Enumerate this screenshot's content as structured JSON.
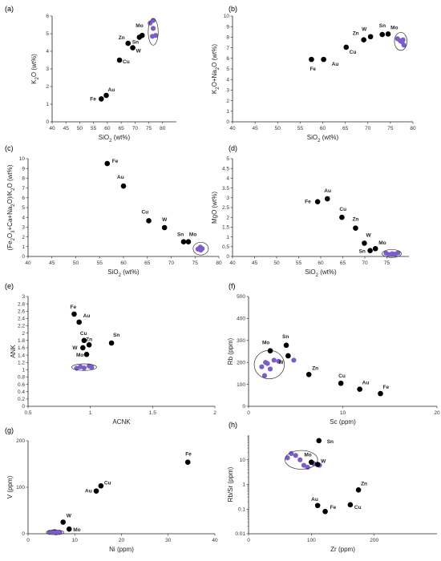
{
  "figure": {
    "colors": {
      "point": "#000000",
      "purple": "#7b5cc9",
      "axis": "#222222",
      "ellipse": "#333333"
    }
  },
  "chart_data": [
    {
      "id": "a",
      "panel_label": "(a)",
      "type": "scatter",
      "xlabel": "SiO2 (wt%)",
      "ylabel": "K2O (wt%)",
      "xlim": [
        40,
        85
      ],
      "ylim": [
        0,
        6
      ],
      "xticks": [
        40,
        45,
        50,
        55,
        60,
        65,
        70,
        75,
        80
      ],
      "yticks": [
        0,
        1,
        2,
        3,
        4,
        5,
        6
      ],
      "points": [
        {
          "label": "Fe",
          "x": 57.8,
          "y": 1.3
        },
        {
          "label": "Au",
          "x": 59.6,
          "y": 1.5
        },
        {
          "label": "Cu",
          "x": 64.4,
          "y": 3.5
        },
        {
          "label": "Zn",
          "x": 67.5,
          "y": 4.45
        },
        {
          "label": "W",
          "x": 69.2,
          "y": 4.2
        },
        {
          "label": "Sn",
          "x": 71.6,
          "y": 4.8
        },
        {
          "label": "Mo",
          "x": 72.6,
          "y": 4.9
        }
      ],
      "cluster": [
        [
          75.5,
          5.6
        ],
        [
          76.6,
          5.3
        ],
        [
          76.3,
          4.85
        ],
        [
          77.5,
          4.9
        ],
        [
          76.6,
          5.75
        ]
      ],
      "ellipse": {
        "cx": 76.6,
        "cy": 5.1,
        "rx": 1.8,
        "ry": 0.75
      }
    },
    {
      "id": "b",
      "panel_label": "(b)",
      "type": "scatter",
      "xlabel": "SiO2 (wt%)",
      "ylabel": "K2O+Na2O (wt%)",
      "xlim": [
        40,
        80
      ],
      "ylim": [
        0,
        10
      ],
      "xticks": [
        40,
        45,
        50,
        55,
        60,
        65,
        70,
        75,
        80
      ],
      "yticks": [
        0,
        1,
        2,
        3,
        4,
        5,
        6,
        7,
        8,
        9,
        10
      ],
      "points": [
        {
          "label": "Fe",
          "x": 57.5,
          "y": 5.9
        },
        {
          "label": "Au",
          "x": 60.2,
          "y": 5.9
        },
        {
          "label": "Cu",
          "x": 65.2,
          "y": 7.05
        },
        {
          "label": "Zn",
          "x": 69.1,
          "y": 7.75
        },
        {
          "label": "W",
          "x": 70.6,
          "y": 8.05
        },
        {
          "label": "Sn",
          "x": 73.2,
          "y": 8.25
        },
        {
          "label": "Mo",
          "x": 74.5,
          "y": 8.3
        }
      ],
      "cluster": [
        [
          76.6,
          7.85
        ],
        [
          77.2,
          7.65
        ],
        [
          77.6,
          7.55
        ],
        [
          77.8,
          7.75
        ],
        [
          78.0,
          7.25
        ]
      ],
      "ellipse": {
        "cx": 77.3,
        "cy": 7.6,
        "rx": 1.4,
        "ry": 0.85
      }
    },
    {
      "id": "c",
      "panel_label": "(c)",
      "type": "scatter",
      "xlabel": "SiO2 (wt%)",
      "ylabel": "(Fe2O3+Ca+Na2O)/K2O (wt%)",
      "xlim": [
        40,
        80
      ],
      "ylim": [
        0,
        10
      ],
      "xticks": [
        40,
        45,
        50,
        55,
        60,
        65,
        70,
        75,
        80
      ],
      "yticks": [
        0,
        1,
        2,
        3,
        4,
        5,
        6,
        7,
        8,
        9,
        10
      ],
      "points": [
        {
          "label": "Fe",
          "x": 56.6,
          "y": 9.5
        },
        {
          "label": "Au",
          "x": 60.0,
          "y": 7.2
        },
        {
          "label": "Cu",
          "x": 65.3,
          "y": 3.65
        },
        {
          "label": "W",
          "x": 68.6,
          "y": 2.95
        },
        {
          "label": "Sn",
          "x": 72.6,
          "y": 1.5
        },
        {
          "label": "Mo",
          "x": 73.6,
          "y": 1.5
        }
      ],
      "cluster": [
        [
          75.6,
          0.75
        ],
        [
          76.1,
          0.95
        ],
        [
          76.5,
          0.8
        ],
        [
          76.2,
          0.65
        ]
      ],
      "ellipse": {
        "cx": 76.2,
        "cy": 0.8,
        "rx": 1.6,
        "ry": 0.65
      }
    },
    {
      "id": "d",
      "panel_label": "(d)",
      "type": "scatter",
      "xlabel": "SiO2 (wt%)",
      "ylabel": "MgO (wt%)",
      "xlim": [
        40,
        80
      ],
      "ylim": [
        0,
        5
      ],
      "xticks": [
        40,
        45,
        50,
        55,
        60,
        65,
        70,
        75
      ],
      "yticks": [
        0,
        0.5,
        1,
        1.5,
        2,
        2.5,
        3,
        3.5,
        4,
        4.5,
        5
      ],
      "points": [
        {
          "label": "Fe",
          "x": 59.3,
          "y": 2.8
        },
        {
          "label": "Au",
          "x": 61.5,
          "y": 2.95
        },
        {
          "label": "Cu",
          "x": 64.8,
          "y": 2.0
        },
        {
          "label": "Zn",
          "x": 67.9,
          "y": 1.45
        },
        {
          "label": "W",
          "x": 69.9,
          "y": 0.68
        },
        {
          "label": "Sn",
          "x": 71.2,
          "y": 0.3
        },
        {
          "label": "Mo",
          "x": 72.4,
          "y": 0.4
        }
      ],
      "cluster": [
        [
          74.8,
          0.17
        ],
        [
          75.5,
          0.1
        ],
        [
          76.2,
          0.14
        ],
        [
          76.9,
          0.12
        ],
        [
          77.5,
          0.18
        ]
      ],
      "ellipse": {
        "cx": 76.1,
        "cy": 0.15,
        "rx": 2.2,
        "ry": 0.2
      }
    },
    {
      "id": "e",
      "panel_label": "(e)",
      "type": "scatter",
      "xlabel": "ACNK",
      "ylabel": "ANK",
      "xlim": [
        0.5,
        2
      ],
      "ylim": [
        0,
        3
      ],
      "xticks": [
        0.5,
        1,
        1.5,
        2
      ],
      "yticks": [
        0,
        0.2,
        0.4,
        0.6,
        0.8,
        1,
        1.2,
        1.4,
        1.6,
        1.8,
        2,
        2.2,
        2.4,
        2.6,
        2.8,
        3
      ],
      "points": [
        {
          "label": "Fe",
          "x": 0.87,
          "y": 2.52
        },
        {
          "label": "Au",
          "x": 0.91,
          "y": 2.3
        },
        {
          "label": "Cu",
          "x": 0.95,
          "y": 1.8
        },
        {
          "label": "Zn",
          "x": 0.99,
          "y": 1.68
        },
        {
          "label": "W",
          "x": 0.94,
          "y": 1.6
        },
        {
          "label": "Mo",
          "x": 0.97,
          "y": 1.42
        },
        {
          "label": "Sn",
          "x": 1.17,
          "y": 1.73
        }
      ],
      "cluster": [
        [
          0.89,
          1.04
        ],
        [
          0.92,
          1.08
        ],
        [
          0.95,
          1.05
        ],
        [
          0.99,
          1.1
        ],
        [
          1.01,
          1.07
        ]
      ],
      "ellipse": {
        "cx": 0.95,
        "cy": 1.07,
        "rx": 0.1,
        "ry": 0.09
      }
    },
    {
      "id": "f",
      "panel_label": "(f)",
      "type": "scatter",
      "xlabel": "Sc (ppm)",
      "ylabel": "Rb (ppm)",
      "xlim": [
        0,
        20
      ],
      "ylim": [
        0,
        500
      ],
      "xticks": [
        0,
        10,
        20
      ],
      "yticks": [
        0,
        100,
        200,
        300,
        400,
        500
      ],
      "points": [
        {
          "label": "Mo",
          "x": 2.3,
          "y": 253
        },
        {
          "label": "Sn",
          "x": 4.0,
          "y": 278
        },
        {
          "label": "W",
          "x": 4.2,
          "y": 230
        },
        {
          "label": "Zn",
          "x": 6.4,
          "y": 145
        },
        {
          "label": "Cu",
          "x": 9.8,
          "y": 105
        },
        {
          "label": "Au",
          "x": 11.8,
          "y": 78
        },
        {
          "label": "Fe",
          "x": 14.0,
          "y": 58
        }
      ],
      "cluster": [
        [
          1.4,
          180
        ],
        [
          1.8,
          200
        ],
        [
          2.0,
          195
        ],
        [
          2.3,
          170
        ],
        [
          1.7,
          140
        ],
        [
          2.7,
          210
        ],
        [
          3.2,
          205
        ],
        [
          4.8,
          210
        ]
      ],
      "ellipse": {
        "cx": 2.2,
        "cy": 190,
        "rx": 1.6,
        "ry": 65
      }
    },
    {
      "id": "g",
      "panel_label": "(g)",
      "type": "scatter",
      "xlabel": "Ni (ppm)",
      "ylabel": "V (ppm)",
      "xlim": [
        0,
        40
      ],
      "ylim": [
        0,
        200
      ],
      "xticks": [
        0,
        10,
        20,
        30,
        40
      ],
      "yticks": [
        0,
        100,
        200
      ],
      "points": [
        {
          "label": "Fe",
          "x": 34.2,
          "y": 154
        },
        {
          "label": "Cu",
          "x": 15.6,
          "y": 103
        },
        {
          "label": "Au",
          "x": 14.6,
          "y": 92
        },
        {
          "label": "W",
          "x": 7.5,
          "y": 25
        },
        {
          "label": "Mo",
          "x": 8.8,
          "y": 10
        }
      ],
      "cluster": [
        [
          4.6,
          3
        ],
        [
          5.3,
          4
        ],
        [
          6.0,
          2
        ],
        [
          6.8,
          3
        ],
        [
          5.7,
          5
        ]
      ],
      "ellipse": {
        "cx": 5.8,
        "cy": 3,
        "rx": 1.9,
        "ry": 5
      }
    },
    {
      "id": "h",
      "panel_label": "(h)",
      "type": "scatter",
      "xlabel": "Zr (ppm)",
      "ylabel": "Rb/Sr (ppm)",
      "log_y": true,
      "xlim": [
        0,
        300
      ],
      "ylim": [
        0.01,
        100
      ],
      "xticks": [
        0,
        100,
        200
      ],
      "yticks": [
        0.01,
        0.1,
        1,
        10
      ],
      "ytick_labels": [
        "0.01",
        "0.1",
        "1",
        "10"
      ],
      "points": [
        {
          "label": "Sn",
          "x": 112,
          "y": 60
        },
        {
          "label": "Mo",
          "x": 100,
          "y": 8
        },
        {
          "label": "W",
          "x": 110,
          "y": 6.5
        },
        {
          "label": "Zn",
          "x": 175,
          "y": 0.6
        },
        {
          "label": "Cu",
          "x": 162,
          "y": 0.15
        },
        {
          "label": "Au",
          "x": 110,
          "y": 0.14
        },
        {
          "label": "Fe",
          "x": 122,
          "y": 0.08
        }
      ],
      "cluster": [
        [
          62,
          12
        ],
        [
          68,
          18
        ],
        [
          75,
          15
        ],
        [
          82,
          10
        ],
        [
          88,
          6
        ],
        [
          94,
          5
        ],
        [
          104,
          7
        ],
        [
          113,
          6
        ]
      ],
      "ellipse": {
        "cx": 84,
        "cy": 10,
        "rx": 26,
        "ry_log": 0.38
      }
    }
  ]
}
